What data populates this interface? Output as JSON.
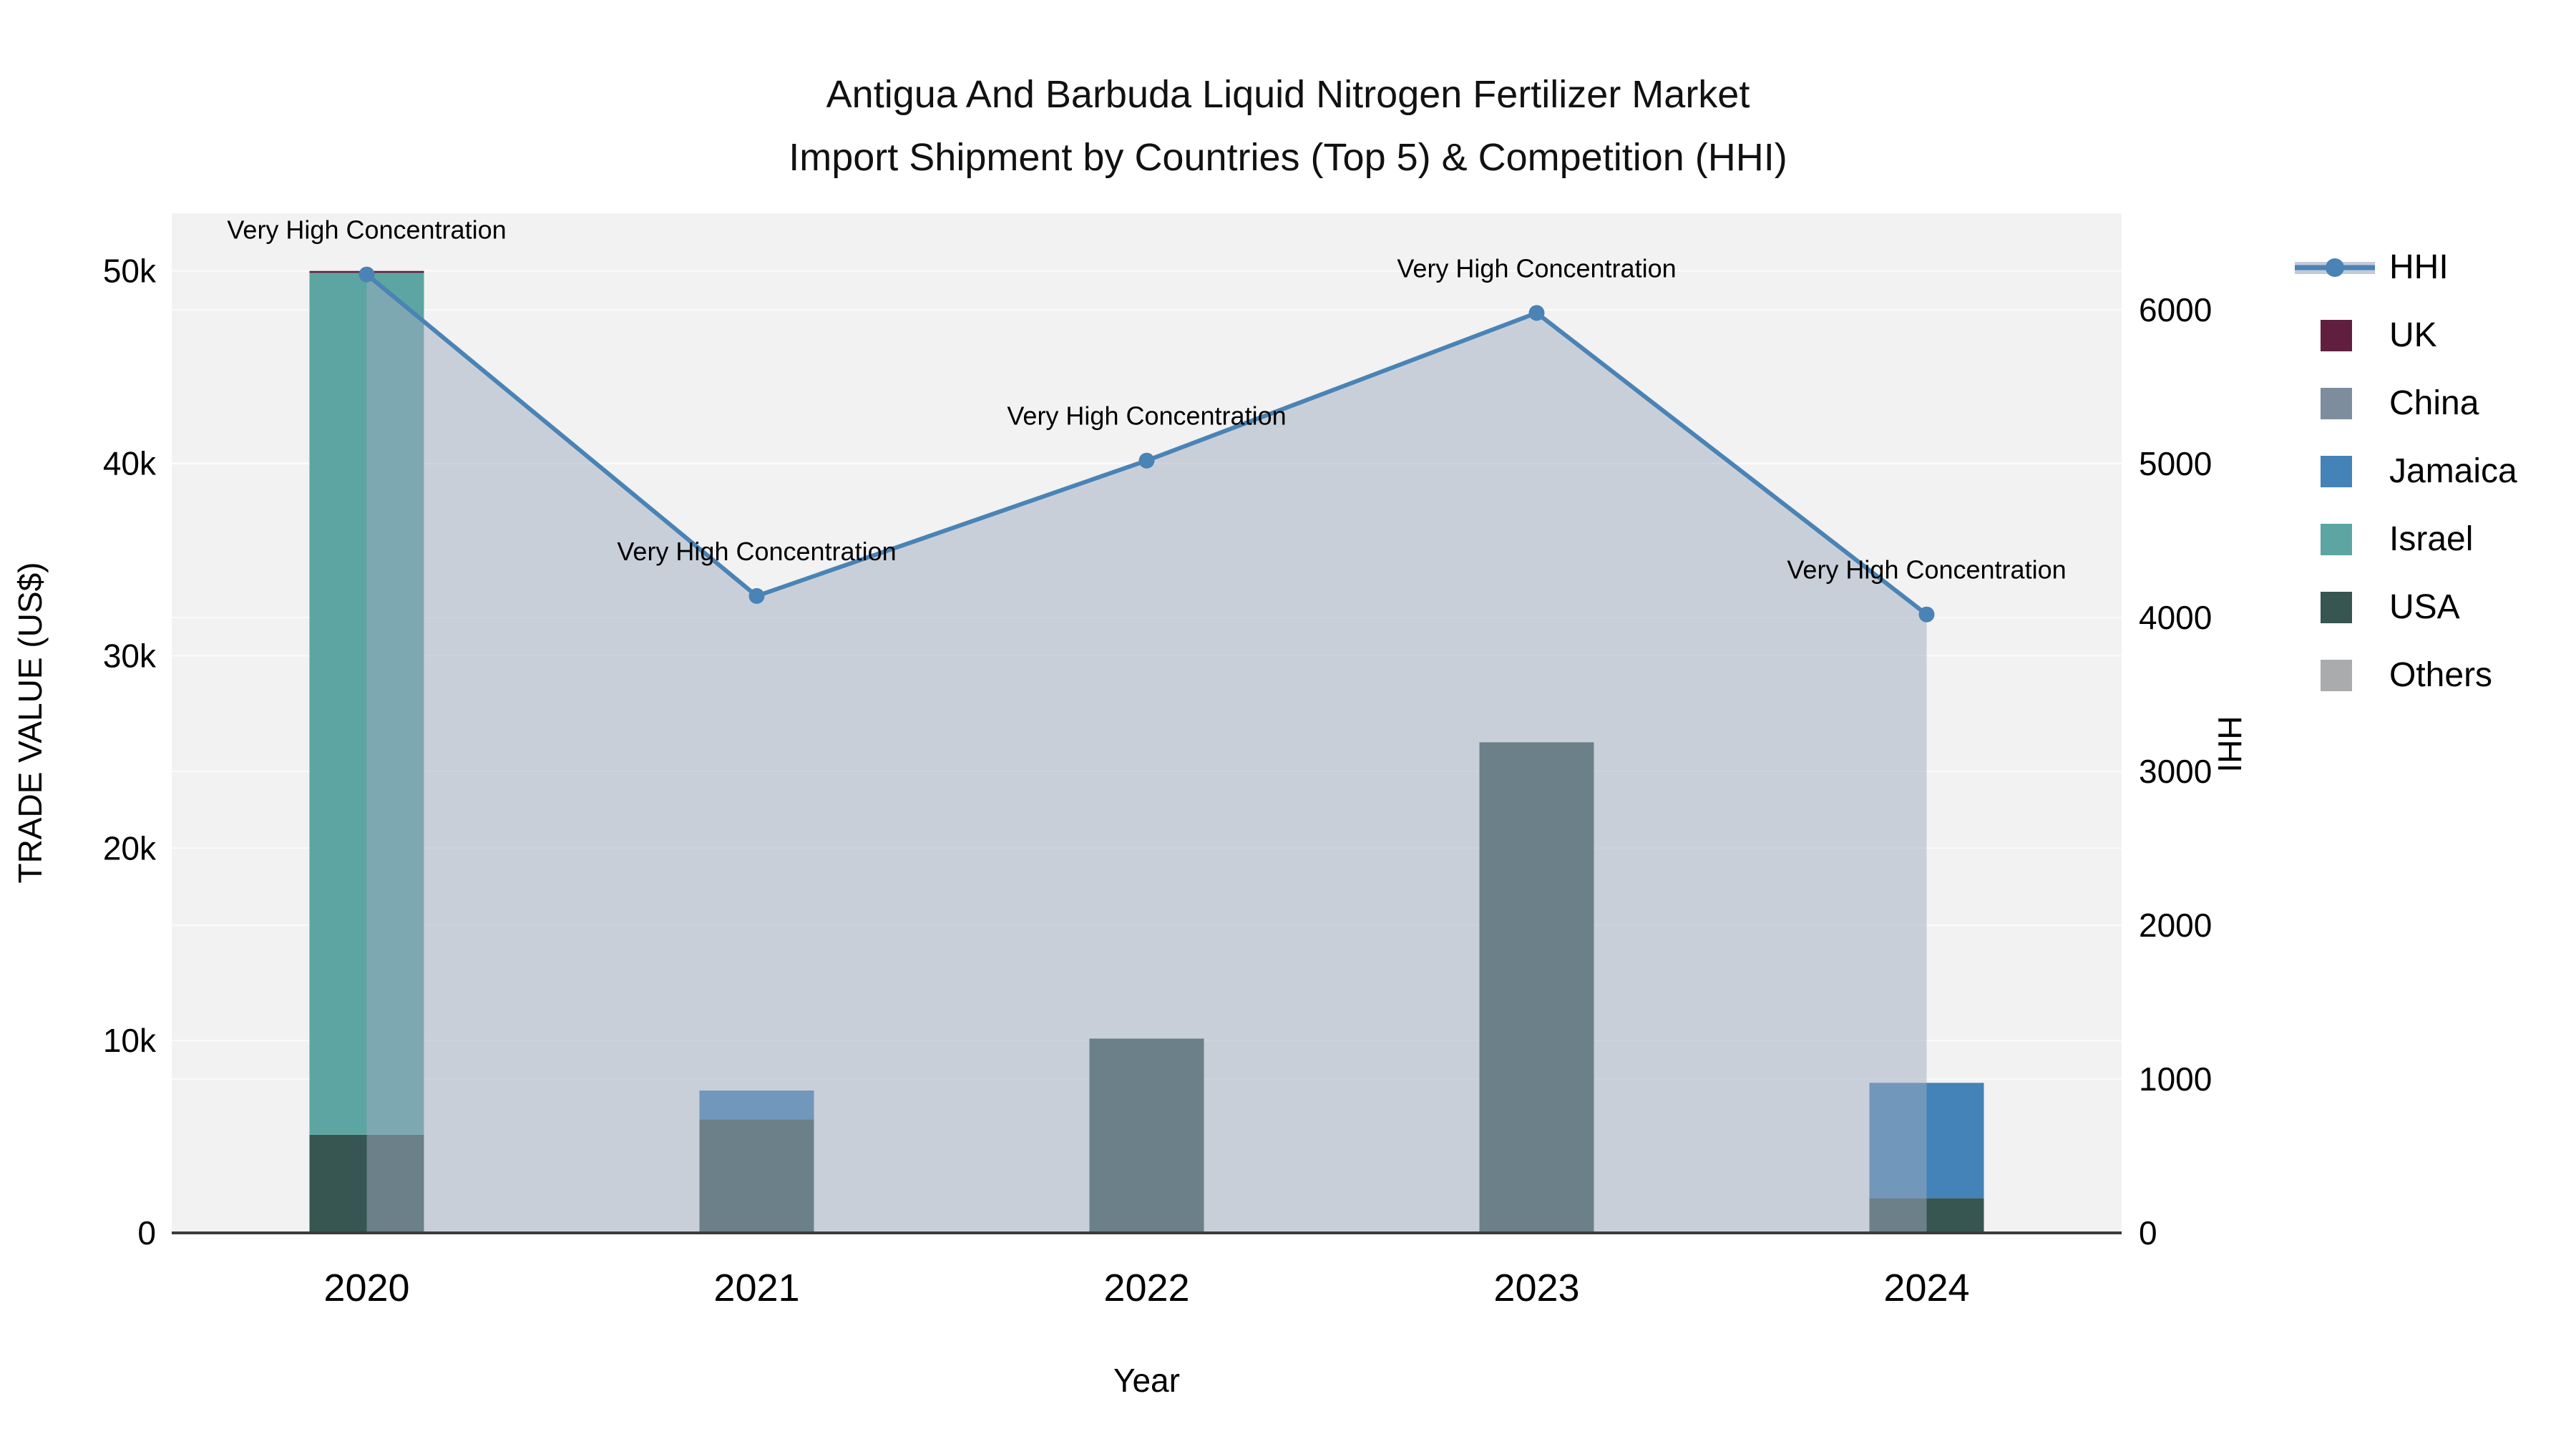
{
  "title": {
    "line1": "Antigua And Barbuda Liquid Nitrogen Fertilizer Market",
    "line2": "Import Shipment by Countries (Top 5) & Competition (HHI)"
  },
  "colors": {
    "HHI": "#4a83b5",
    "UK": "#611f40",
    "China": "#7d8d9e",
    "Jamaica": "#4383b7",
    "Israel": "#5ca5a2",
    "USA": "#375551",
    "Others": "#a9abac",
    "area_fill": "rgba(160,172,192,0.5)",
    "plot_bg": "#f2f2f2",
    "grid": "rgba(255,255,255,0.7)",
    "axis_line": "#3b3b3b",
    "legend_band": "#c3cad6",
    "text": "#000000"
  },
  "chart_data": {
    "type": "bar",
    "subtype": "stacked-bar-with-line",
    "categories": [
      "2020",
      "2021",
      "2022",
      "2023",
      "2024"
    ],
    "xlabel": "Year",
    "ylabel_left": "TRADE VALUE (US$)",
    "ylabel_right": "HHI",
    "ylim_left": [
      0,
      53000
    ],
    "ylim_right": [
      0,
      6628
    ],
    "yticks_left": [
      {
        "value": 0,
        "label": "0"
      },
      {
        "value": 10000,
        "label": "10k"
      },
      {
        "value": 20000,
        "label": "20k"
      },
      {
        "value": 30000,
        "label": "30k"
      },
      {
        "value": 40000,
        "label": "40k"
      },
      {
        "value": 50000,
        "label": "50k"
      }
    ],
    "yticks_right": [
      {
        "value": 0,
        "label": "0"
      },
      {
        "value": 1000,
        "label": "1000"
      },
      {
        "value": 2000,
        "label": "2000"
      },
      {
        "value": 3000,
        "label": "3000"
      },
      {
        "value": 4000,
        "label": "4000"
      },
      {
        "value": 5000,
        "label": "5000"
      },
      {
        "value": 6000,
        "label": "6000"
      }
    ],
    "stack_order_bottom_to_top": [
      "Others",
      "USA",
      "Israel",
      "Jamaica",
      "China",
      "UK"
    ],
    "series": [
      {
        "name": "UK",
        "type": "bar",
        "axis": "left",
        "values": [
          100,
          0,
          0,
          0,
          0
        ]
      },
      {
        "name": "China",
        "type": "bar",
        "axis": "left",
        "values": [
          0,
          0,
          0,
          0,
          0
        ]
      },
      {
        "name": "Jamaica",
        "type": "bar",
        "axis": "left",
        "values": [
          0,
          1500,
          0,
          0,
          6000
        ]
      },
      {
        "name": "Israel",
        "type": "bar",
        "axis": "left",
        "values": [
          44800,
          0,
          0,
          0,
          0
        ]
      },
      {
        "name": "USA",
        "type": "bar",
        "axis": "left",
        "values": [
          5100,
          5900,
          10100,
          25500,
          1800
        ]
      },
      {
        "name": "Others",
        "type": "bar",
        "axis": "left",
        "values": [
          0,
          0,
          0,
          0,
          0
        ]
      },
      {
        "name": "HHI",
        "type": "line",
        "axis": "right",
        "values": [
          6230,
          4140,
          5020,
          5980,
          4020
        ]
      }
    ],
    "bar_totals": [
      50000,
      7400,
      10100,
      25500,
      7800
    ],
    "annotations": [
      {
        "x": "2020",
        "text": "Very High Concentration"
      },
      {
        "x": "2021",
        "text": "Very High Concentration"
      },
      {
        "x": "2022",
        "text": "Very High Concentration"
      },
      {
        "x": "2023",
        "text": "Very High Concentration"
      },
      {
        "x": "2024",
        "text": "Very High Concentration"
      }
    ],
    "legend_position": "right",
    "grid": "horizontal"
  },
  "legend": {
    "order": [
      "HHI",
      "UK",
      "China",
      "Jamaica",
      "Israel",
      "USA",
      "Others"
    ]
  }
}
